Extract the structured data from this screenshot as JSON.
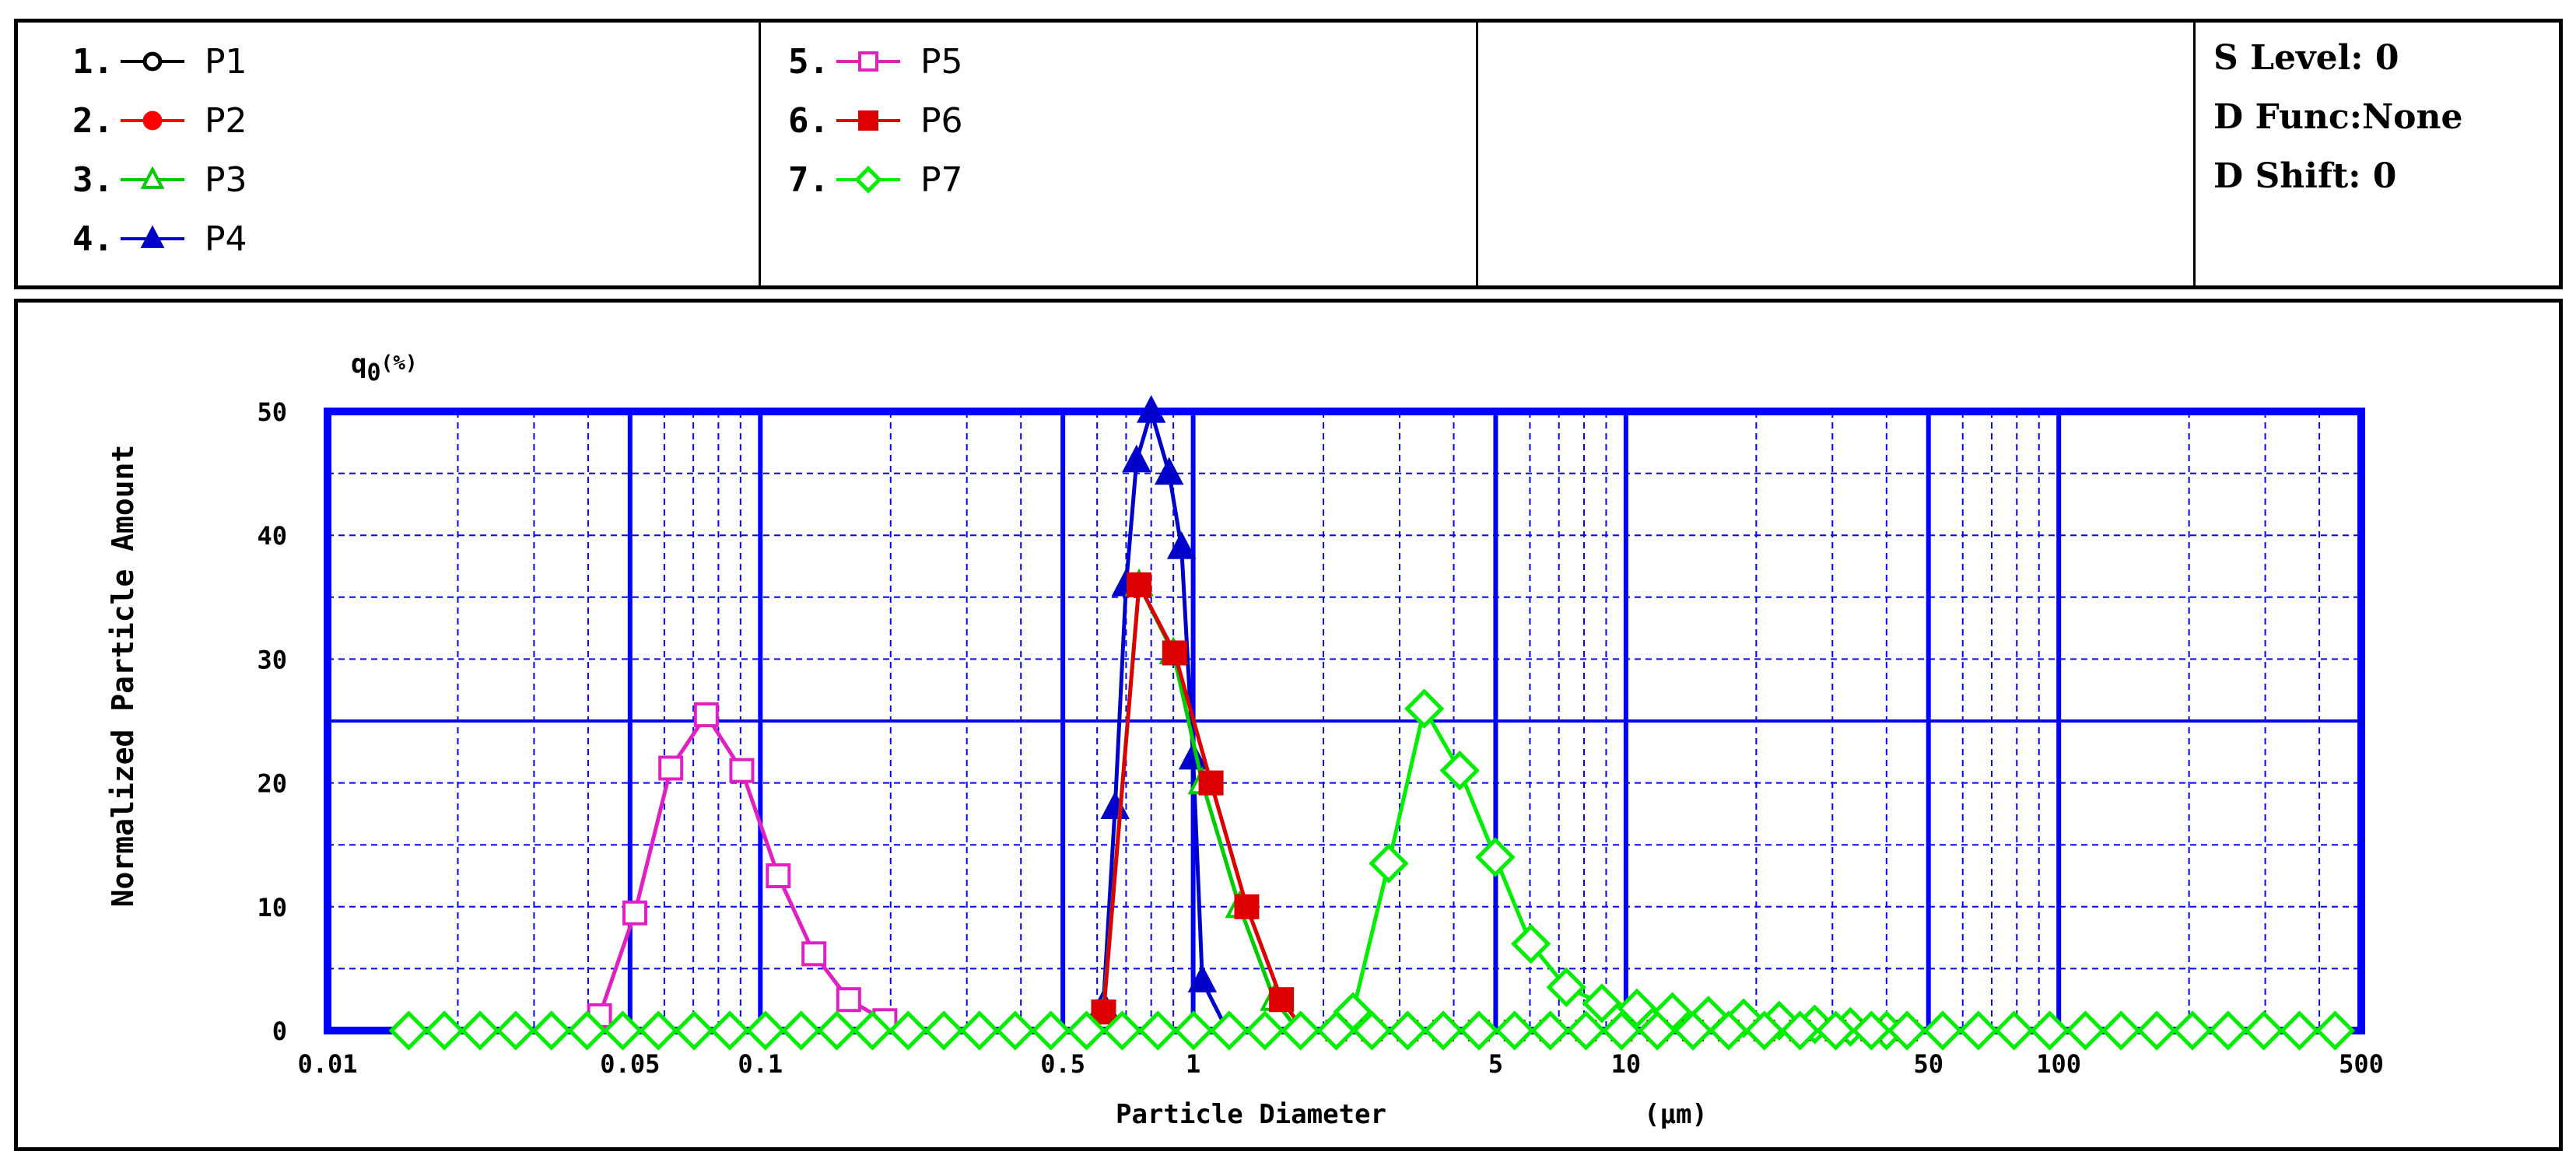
{
  "legend": {
    "entries": [
      {
        "num": "1.",
        "name": "P1",
        "color": "#000000",
        "marker": "circle-open"
      },
      {
        "num": "2.",
        "name": "P2",
        "color": "#ff0000",
        "marker": "circle-filled"
      },
      {
        "num": "3.",
        "name": "P3",
        "color": "#00cc00",
        "marker": "triangle-open"
      },
      {
        "num": "4.",
        "name": "P4",
        "color": "#0000cc",
        "marker": "triangle-filled"
      },
      {
        "num": "5.",
        "name": "P5",
        "color": "#e020c0",
        "marker": "square-open"
      },
      {
        "num": "6.",
        "name": "P6",
        "color": "#dd0000",
        "marker": "square-filled"
      },
      {
        "num": "7.",
        "name": "P7",
        "color": "#00ee00",
        "marker": "diamond-open"
      }
    ]
  },
  "status": {
    "s_level": "S Level: 0",
    "d_func": "D Func:None",
    "d_shift": "D Shift: 0"
  },
  "chart_data": {
    "type": "line",
    "xscale": "log",
    "xlim": [
      0.01,
      500
    ],
    "ylim": [
      0,
      50
    ],
    "ylabel_top": "q0 (%)",
    "ylabel": "Normalized Particle Amount",
    "xlabel": "Particle Diameter",
    "xunit": "(μm)",
    "x_ticks": [
      "0.01",
      "0.05",
      "0.1",
      "0.5",
      "1",
      "5",
      "10",
      "50",
      "100",
      "500"
    ],
    "x_tick_values": [
      0.01,
      0.05,
      0.1,
      0.5,
      1,
      5,
      10,
      50,
      100,
      500
    ],
    "y_ticks": [
      0,
      10,
      20,
      30,
      40,
      50
    ],
    "grid": true,
    "colors": {
      "axis": "#0000ff",
      "grid": "#0000ff"
    },
    "series": [
      {
        "name": "P5",
        "color": "#e020c0",
        "marker": "square-open",
        "x": [
          0.0425,
          0.0513,
          0.0621,
          0.075,
          0.0906,
          0.11,
          0.133,
          0.16,
          0.194,
          0.234
        ],
        "y": [
          1.2,
          9.5,
          21.2,
          25.5,
          21.0,
          12.5,
          6.2,
          2.5,
          0.8,
          0
        ]
      },
      {
        "name": "P4",
        "color": "#0000cc",
        "marker": "triangle-filled",
        "x": [
          0.5,
          0.54,
          0.58,
          0.62,
          0.66,
          0.7,
          0.74,
          0.8,
          0.88,
          0.94,
          1.0,
          1.05,
          1.18,
          1.3
        ],
        "y": [
          0,
          0,
          0,
          2,
          18,
          36,
          46,
          50,
          45,
          39,
          22,
          4,
          0.5,
          0
        ]
      },
      {
        "name": "P3",
        "color": "#00cc00",
        "marker": "triangle-open",
        "x": [
          0.52,
          0.62,
          0.75,
          0.9,
          1.05,
          1.28,
          1.54,
          1.75
        ],
        "y": [
          0,
          1.5,
          36.0,
          30.5,
          20.0,
          10.0,
          2.5,
          0
        ]
      },
      {
        "name": "P6",
        "color": "#dd0000",
        "marker": "square-filled",
        "x": [
          0.515,
          0.621,
          0.75,
          0.906,
          1.1,
          1.33,
          1.6,
          1.8
        ],
        "y": [
          0,
          1.5,
          36.0,
          30.5,
          20.0,
          10.0,
          2.5,
          0
        ]
      },
      {
        "name": "P7",
        "color": "#00ee00",
        "marker": "diamond-open",
        "x": [
          2.34,
          2.83,
          3.42,
          4.13,
          4.99,
          6.03,
          7.28,
          8.8,
          10.6,
          12.8,
          15.5,
          18.7,
          22.6,
          27.3,
          33.0,
          40.0
        ],
        "y": [
          1.5,
          13.5,
          26.0,
          21.0,
          14.0,
          7.0,
          3.5,
          2.2,
          1.8,
          1.5,
          1.2,
          1.0,
          0.8,
          0.5,
          0.3,
          0
        ]
      }
    ]
  }
}
